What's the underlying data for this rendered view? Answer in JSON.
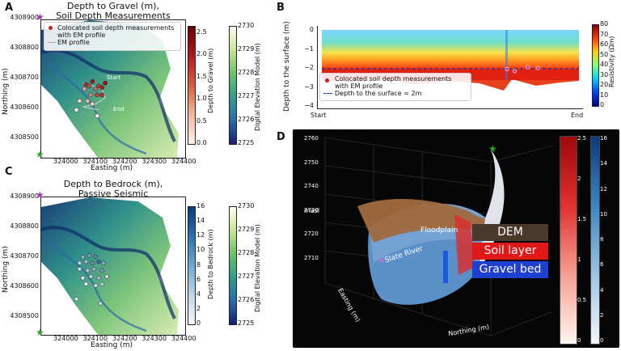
{
  "panelA": {
    "letter": "A",
    "title_line1": "Depth to Gravel (m),",
    "title_line2": "Soil Depth Measurements",
    "legend_points": "Colocated soil depth measurements",
    "legend_points2": "with EM profile",
    "legend_line": "EM profile",
    "start_label": "Start",
    "end_label": "End",
    "cbar1_label": "Depth to Gravel (m)",
    "cbar1_ticks": [
      "2.5",
      "2.0",
      "1.5",
      "1.0",
      "0.5",
      "0.0"
    ],
    "cbar2_label": "Digital Elevation Model (m)",
    "cbar2_ticks": [
      "2730",
      "2729",
      "2728",
      "2727",
      "2726",
      "2725"
    ]
  },
  "panelC": {
    "letter": "C",
    "title_line1": "Depth to Bedrock (m),",
    "title_line2": "Passive Seismic",
    "cbar1_label": "Depth to Bedrock (m)",
    "cbar1_ticks": [
      "16",
      "14",
      "12",
      "10",
      "8",
      "6",
      "4",
      "2",
      "0"
    ],
    "cbar2_label": "Digital Elevation Model (m)",
    "cbar2_ticks": [
      "2730",
      "2729",
      "2728",
      "2727",
      "2726",
      "2725"
    ]
  },
  "mapAxes": {
    "ylabel": "Northing (m)",
    "xlabel": "Easting (m)",
    "yticks": [
      "4308900",
      "4308800",
      "4308700",
      "4308600",
      "4308500"
    ],
    "xticks": [
      "324000",
      "324100",
      "324200",
      "324300",
      "324400"
    ]
  },
  "panelB": {
    "letter": "B",
    "ylabel": "Depth to the surface (m)",
    "yticks": [
      "0",
      "−1",
      "−2",
      "−3",
      "−4"
    ],
    "x_start": "Start",
    "x_end": "End",
    "legend_points": "Colocated soil depth measurements",
    "legend_points2": "with EM profile",
    "legend_line": "Depth to the surface = 2m",
    "cbar_label": "Resistivity (Ωm)",
    "cbar_ticks": [
      "80",
      "70",
      "60",
      "50",
      "40",
      "30",
      "20",
      "10",
      "0"
    ]
  },
  "panelD": {
    "letter": "D",
    "zlabel": "masl",
    "zticks": [
      "2760",
      "2750",
      "2740",
      "2730",
      "2720",
      "2710"
    ],
    "easting_label": "Easting (m)",
    "northing_label": "Northing (m)",
    "floodplain": "Floodplain",
    "slate_river": "Slate River",
    "tag_dem": "DEM",
    "tag_soil": "Soil layer",
    "tag_gravel": "Gravel bed",
    "cbar_red_ticks": [
      "2.5",
      "2",
      "1.5",
      "1",
      "0.5",
      "0"
    ],
    "cbar_blue_ticks": [
      "16",
      "14",
      "12",
      "10",
      "8",
      "6",
      "4",
      "2",
      "0"
    ]
  },
  "chart_data": [
    {
      "type": "scatter",
      "panel": "A",
      "title": "Depth to Gravel (m), Soil Depth Measurements",
      "xlabel": "Easting (m)",
      "ylabel": "Northing (m)",
      "xlim": [
        323950,
        324400
      ],
      "ylim": [
        4308450,
        4308910
      ],
      "colorbar_depth": [
        0.0,
        2.6
      ],
      "colorbar_dem": [
        2725,
        2730
      ],
      "series": [
        {
          "name": "Colocated soil depth measurements with EM profile",
          "points": [
            [
              324090,
              4308695,
              2.2
            ],
            [
              324100,
              4308690,
              1.8
            ],
            [
              324110,
              4308705,
              2.4
            ],
            [
              324120,
              4308680,
              1.5
            ],
            [
              324130,
              4308690,
              2.0
            ],
            [
              324140,
              4308685,
              2.3
            ],
            [
              324105,
              4308660,
              1.2
            ],
            [
              324095,
              4308640,
              0.6
            ],
            [
              324125,
              4308660,
              1.9
            ],
            [
              324140,
              4308660,
              2.1
            ],
            [
              324150,
              4308700,
              2.5
            ],
            [
              324085,
              4308680,
              0.9
            ],
            [
              324070,
              4308640,
              0.3
            ],
            [
              324060,
              4308610,
              0.0
            ],
            [
              324110,
              4308630,
              0.4
            ],
            [
              324125,
              4308590,
              0.1
            ]
          ]
        },
        {
          "name": "EM profile",
          "points": [
            [
              324080,
              4308700
            ],
            [
              324110,
              4308690
            ],
            [
              324140,
              4308680
            ],
            [
              324150,
              4308650
            ],
            [
              324120,
              4308630
            ],
            [
              324080,
              4308620
            ],
            [
              324130,
              4308610
            ]
          ]
        }
      ]
    },
    {
      "type": "scatter",
      "panel": "C",
      "title": "Depth to Bedrock (m), Passive Seismic",
      "xlabel": "Easting (m)",
      "ylabel": "Northing (m)",
      "xlim": [
        323950,
        324400
      ],
      "ylim": [
        4308450,
        4308910
      ],
      "colorbar_depth": [
        0,
        16
      ],
      "colorbar_dem": [
        2725,
        2730
      ],
      "series": [
        {
          "name": "",
          "points": [
            [
              324080,
              4308710,
              6
            ],
            [
              324100,
              4308715,
              8
            ],
            [
              324120,
              4308712,
              10
            ],
            [
              324070,
              4308690,
              3
            ],
            [
              324090,
              4308695,
              5
            ],
            [
              324110,
              4308690,
              9
            ],
            [
              324130,
              4308695,
              12
            ],
            [
              324145,
              4308690,
              7
            ],
            [
              324070,
              4308670,
              2
            ],
            [
              324095,
              4308665,
              4
            ],
            [
              324115,
              4308670,
              6
            ],
            [
              324140,
              4308665,
              8
            ],
            [
              324080,
              4308640,
              1
            ],
            [
              324105,
              4308645,
              3
            ],
            [
              324130,
              4308640,
              5
            ],
            [
              324155,
              4308645,
              2
            ],
            [
              324090,
              4308620,
              0
            ],
            [
              324120,
              4308615,
              2
            ],
            [
              324140,
              4308620,
              4
            ],
            [
              324060,
              4308570,
              1
            ],
            [
              324135,
              4308555,
              3
            ]
          ]
        }
      ]
    },
    {
      "type": "heatmap",
      "panel": "B",
      "ylabel": "Depth to the surface (m)",
      "ylim": [
        -4,
        0
      ],
      "xlabel_ticks": [
        "Start",
        "End"
      ],
      "colorbar": "Resistivity (Ωm)",
      "zlim": [
        0,
        80
      ],
      "reference_line": {
        "name": "Depth to the surface = 2m",
        "y": -2
      },
      "series": [
        {
          "name": "Colocated soil depth measurements with EM profile",
          "x_fraction": [
            0.72,
            0.75,
            0.8,
            0.84
          ],
          "y": [
            -2.0,
            -2.1,
            -1.9,
            -1.95
          ]
        }
      ]
    }
  ]
}
